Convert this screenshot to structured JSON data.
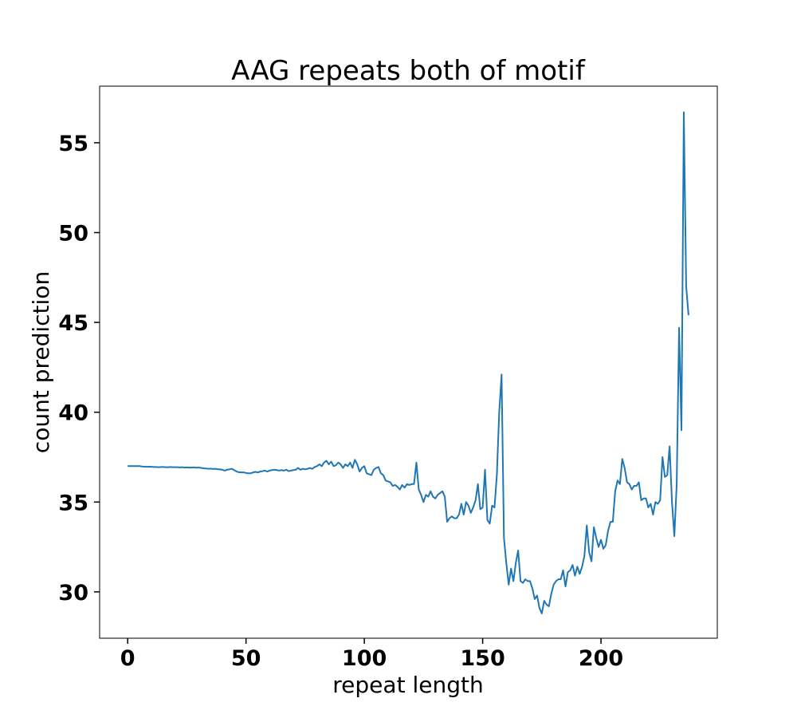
{
  "chart_data": {
    "type": "line",
    "title": "AAG repeats both of motif",
    "x_label": "repeat length",
    "y_label": "count prediction",
    "x": [
      0,
      1,
      2,
      3,
      4,
      5,
      6,
      7,
      8,
      9,
      10,
      11,
      12,
      13,
      14,
      15,
      16,
      17,
      18,
      19,
      20,
      21,
      22,
      23,
      24,
      25,
      26,
      27,
      28,
      29,
      30,
      31,
      32,
      33,
      34,
      35,
      36,
      37,
      38,
      39,
      40,
      41,
      42,
      43,
      44,
      45,
      46,
      47,
      48,
      49,
      50,
      51,
      52,
      53,
      54,
      55,
      56,
      57,
      58,
      59,
      60,
      61,
      62,
      63,
      64,
      65,
      66,
      67,
      68,
      69,
      70,
      71,
      72,
      73,
      74,
      75,
      76,
      77,
      78,
      79,
      80,
      81,
      82,
      83,
      84,
      85,
      86,
      87,
      88,
      89,
      90,
      91,
      92,
      93,
      94,
      95,
      96,
      97,
      98,
      99,
      100,
      101,
      102,
      103,
      104,
      105,
      106,
      107,
      108,
      109,
      110,
      111,
      112,
      113,
      114,
      115,
      116,
      117,
      118,
      119,
      120,
      121,
      122,
      123,
      124,
      125,
      126,
      127,
      128,
      129,
      130,
      131,
      132,
      133,
      134,
      135,
      136,
      137,
      138,
      139,
      140,
      141,
      142,
      143,
      144,
      145,
      146,
      147,
      148,
      149,
      150,
      151,
      152,
      153,
      154,
      155,
      156,
      157,
      158,
      159,
      160,
      161,
      162,
      163,
      164,
      165,
      166,
      167,
      168,
      169,
      170,
      171,
      172,
      173,
      174,
      175,
      176,
      177,
      178,
      179,
      180,
      181,
      182,
      183,
      184,
      185,
      186,
      187,
      188,
      189,
      190,
      191,
      192,
      193,
      194,
      195,
      196,
      197,
      198,
      199,
      200,
      201,
      202,
      203,
      204,
      205,
      206,
      207,
      208,
      209,
      210,
      211,
      212,
      213,
      214,
      215,
      216,
      217,
      218,
      219,
      220,
      221,
      222,
      223,
      224,
      225,
      226,
      227,
      228,
      229,
      230,
      231,
      232,
      233,
      234,
      235,
      236,
      237
    ],
    "series": [
      {
        "name": "count prediction",
        "color": "#1f77b4",
        "values": [
          37.0,
          37.0,
          37.0,
          37.0,
          37.0,
          37.0,
          36.98,
          36.97,
          36.96,
          36.97,
          36.96,
          36.95,
          36.95,
          36.94,
          36.95,
          36.95,
          36.94,
          36.94,
          36.95,
          36.94,
          36.94,
          36.94,
          36.93,
          36.94,
          36.92,
          36.93,
          36.92,
          36.92,
          36.93,
          36.91,
          36.92,
          36.9,
          36.88,
          36.87,
          36.85,
          36.86,
          36.84,
          36.85,
          36.83,
          36.82,
          36.8,
          36.75,
          36.8,
          36.82,
          36.85,
          36.78,
          36.7,
          36.66,
          36.65,
          36.65,
          36.62,
          36.6,
          36.6,
          36.65,
          36.68,
          36.65,
          36.7,
          36.72,
          36.75,
          36.7,
          36.75,
          36.78,
          36.8,
          36.78,
          36.75,
          36.78,
          36.75,
          36.8,
          36.72,
          36.75,
          36.78,
          36.8,
          36.9,
          36.8,
          36.85,
          36.82,
          36.85,
          36.9,
          36.85,
          36.95,
          37.0,
          37.1,
          37.0,
          37.2,
          37.3,
          37.1,
          37.25,
          37.0,
          37.05,
          37.2,
          37.1,
          36.9,
          37.1,
          37.0,
          37.2,
          36.9,
          37.35,
          37.1,
          36.7,
          36.9,
          37.0,
          36.6,
          36.55,
          36.5,
          36.8,
          36.9,
          36.95,
          36.6,
          36.5,
          36.2,
          36.15,
          36.1,
          35.9,
          35.95,
          35.85,
          35.7,
          35.95,
          35.8,
          36.0,
          35.95,
          36.0,
          36.0,
          37.2,
          35.7,
          35.4,
          35.0,
          35.4,
          35.3,
          35.6,
          35.3,
          35.2,
          35.4,
          35.5,
          35.6,
          35.3,
          33.9,
          34.1,
          34.2,
          34.1,
          34.1,
          34.3,
          34.9,
          34.3,
          35.0,
          34.8,
          34.4,
          34.7,
          35.1,
          36.0,
          34.6,
          34.7,
          36.8,
          34.0,
          33.8,
          34.8,
          34.7,
          36.5,
          40.0,
          42.1,
          33.0,
          31.6,
          30.4,
          31.3,
          30.6,
          31.6,
          32.3,
          30.6,
          30.5,
          30.7,
          30.6,
          30.6,
          30.2,
          29.6,
          29.8,
          29.1,
          28.8,
          29.5,
          29.3,
          29.2,
          29.9,
          30.4,
          30.6,
          30.7,
          30.7,
          31.2,
          30.3,
          31.1,
          31.2,
          31.5,
          30.9,
          31.4,
          31.0,
          31.4,
          32.0,
          33.7,
          32.2,
          31.7,
          33.6,
          33.0,
          32.5,
          32.9,
          32.4,
          32.6,
          33.4,
          33.9,
          33.9,
          35.6,
          36.2,
          36.0,
          37.4,
          36.9,
          36.1,
          36.0,
          35.7,
          35.9,
          35.9,
          36.1,
          35.1,
          35.2,
          35.2,
          34.7,
          34.9,
          34.3,
          35.0,
          34.9,
          35.1,
          37.5,
          36.4,
          36.5,
          38.1,
          35.0,
          33.1,
          36.0,
          44.7,
          39.0,
          56.7,
          47.0,
          45.4
        ]
      }
    ],
    "xlim": [
      -11.85,
      249.15
    ],
    "ylim": [
      27.42,
      58.15
    ],
    "xticks": [
      0,
      50,
      100,
      150,
      200
    ],
    "yticks": [
      30,
      35,
      40,
      45,
      50,
      55
    ]
  }
}
